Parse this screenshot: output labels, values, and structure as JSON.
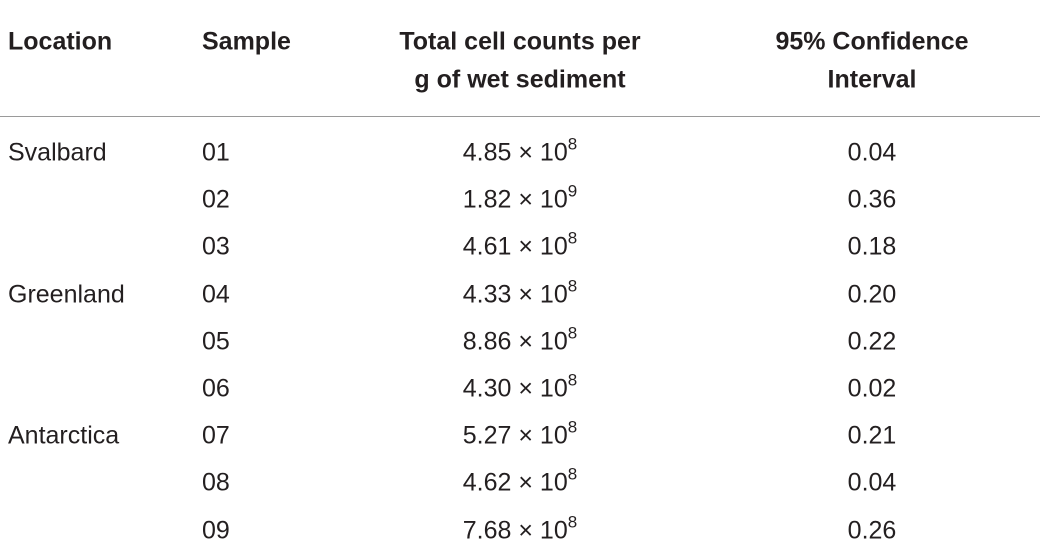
{
  "table": {
    "headers": [
      [
        "Location"
      ],
      [
        "Sample"
      ],
      [
        "Total cell counts per",
        "g of wet sediment"
      ],
      [
        "95% Confidence",
        "Interval"
      ]
    ],
    "groups": [
      {
        "location": "Svalbard",
        "rows": [
          {
            "sample": "01",
            "count": {
              "value": "4.85 × 10",
              "exponent": "8"
            },
            "ci": "0.04"
          },
          {
            "sample": "02",
            "count": {
              "value": "1.82 × 10",
              "exponent": "9"
            },
            "ci": "0.36"
          },
          {
            "sample": "03",
            "count": {
              "value": "4.61 × 10",
              "exponent": "8"
            },
            "ci": "0.18"
          }
        ]
      },
      {
        "location": "Greenland",
        "rows": [
          {
            "sample": "04",
            "count": {
              "value": "4.33 × 10",
              "exponent": "8"
            },
            "ci": "0.20"
          },
          {
            "sample": "05",
            "count": {
              "value": "8.86 × 10",
              "exponent": "8"
            },
            "ci": "0.22"
          },
          {
            "sample": "06",
            "count": {
              "value": "4.30 × 10",
              "exponent": "8"
            },
            "ci": "0.02"
          }
        ]
      },
      {
        "location": "Antarctica",
        "rows": [
          {
            "sample": "07",
            "count": {
              "value": "5.27 × 10",
              "exponent": "8"
            },
            "ci": "0.21"
          },
          {
            "sample": "08",
            "count": {
              "value": "4.62 × 10",
              "exponent": "8"
            },
            "ci": "0.04"
          },
          {
            "sample": "09",
            "count": {
              "value": "7.68 × 10",
              "exponent": "8"
            },
            "ci": "0.26"
          }
        ]
      }
    ]
  }
}
